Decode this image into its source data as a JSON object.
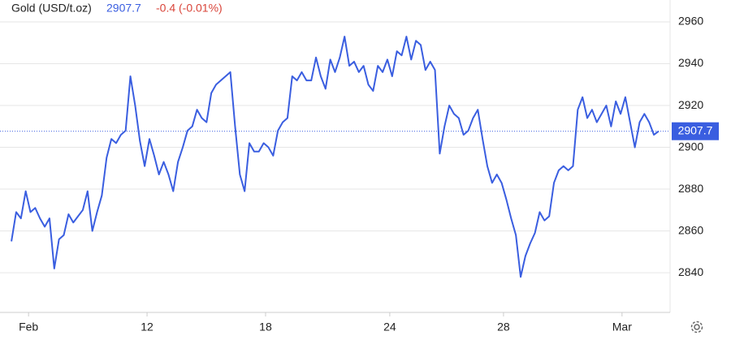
{
  "chart_data": {
    "type": "line",
    "title": "Gold (USD/t.oz)",
    "price": 2907.7,
    "change": "-0.4 (-0.01%)",
    "x": [
      0,
      1,
      2,
      3,
      4,
      5,
      6,
      7,
      8,
      9,
      10,
      11,
      12,
      13,
      14,
      15,
      16,
      17,
      18,
      19,
      20,
      21,
      22,
      23,
      24,
      25,
      26,
      27,
      28,
      29,
      30,
      31,
      32,
      33,
      34,
      35,
      36,
      37,
      38,
      39,
      40,
      41,
      42,
      43,
      44,
      45,
      46,
      47,
      48,
      49,
      50,
      51,
      52,
      53,
      54,
      55,
      56,
      57,
      58,
      59,
      60,
      61,
      62,
      63,
      64,
      65,
      66,
      67,
      68,
      69,
      70,
      71,
      72,
      73,
      74,
      75,
      76,
      77,
      78,
      79,
      80,
      81,
      82,
      83,
      84,
      85,
      86,
      87,
      88,
      89,
      90,
      91,
      92,
      93,
      94,
      95,
      96,
      97,
      98,
      99,
      100,
      101,
      102,
      103,
      104,
      105,
      106,
      107,
      108,
      109,
      110,
      111,
      112,
      113,
      114,
      115,
      116,
      117,
      118,
      119,
      120,
      121,
      122,
      123,
      124,
      125,
      126,
      127,
      128,
      129,
      130,
      131,
      132,
      133,
      134,
      135,
      136
    ],
    "series": [
      {
        "name": "Gold",
        "color": "#3a5ee0",
        "values": [
          2855,
          2869,
          2866,
          2879,
          2869,
          2871,
          2866,
          2862,
          2866,
          2842,
          2856,
          2858,
          2868,
          2864,
          2867,
          2870,
          2879,
          2860,
          2869,
          2877,
          2895,
          2904,
          2902,
          2906,
          2908,
          2934,
          2920,
          2903,
          2891,
          2904,
          2896,
          2887,
          2893,
          2887,
          2879,
          2893,
          2900,
          2908,
          2910,
          2918,
          2914,
          2912,
          2926,
          2930,
          2932,
          2934,
          2936,
          2910,
          2887,
          2879,
          2902,
          2898,
          2898,
          2902,
          2900,
          2896,
          2908,
          2912,
          2914,
          2934,
          2932,
          2936,
          2932,
          2932,
          2943,
          2934,
          2928,
          2942,
          2936,
          2943,
          2953,
          2939,
          2941,
          2936,
          2939,
          2930,
          2927,
          2939,
          2936,
          2942,
          2934,
          2946,
          2944,
          2953,
          2942,
          2951,
          2949,
          2937,
          2941,
          2937,
          2897,
          2910,
          2920,
          2916,
          2914,
          2906,
          2908,
          2914,
          2918,
          2904,
          2891,
          2883,
          2887,
          2883,
          2875,
          2866,
          2858,
          2838,
          2848,
          2854,
          2859,
          2869,
          2865,
          2867,
          2883,
          2889,
          2891,
          2889,
          2891,
          2918,
          2924,
          2914,
          2918,
          2912,
          2916,
          2920,
          2910,
          2922,
          2916,
          2924,
          2912,
          2900,
          2912,
          2916,
          2912,
          2906,
          2907.7
        ]
      }
    ],
    "xlim": [
      -2.4,
      138.4
    ],
    "xticks": [
      {
        "value": 3.6,
        "label": "Feb"
      },
      {
        "value": 28.5,
        "label": "12"
      },
      {
        "value": 53.4,
        "label": "18"
      },
      {
        "value": 79.5,
        "label": "24"
      },
      {
        "value": 103.4,
        "label": "28"
      },
      {
        "value": 128.3,
        "label": "Mar"
      }
    ],
    "ylim": [
      2821,
      2970.5
    ],
    "yticks": [
      2840,
      2860,
      2880,
      2900,
      2920,
      2940,
      2960
    ],
    "grid": true
  }
}
